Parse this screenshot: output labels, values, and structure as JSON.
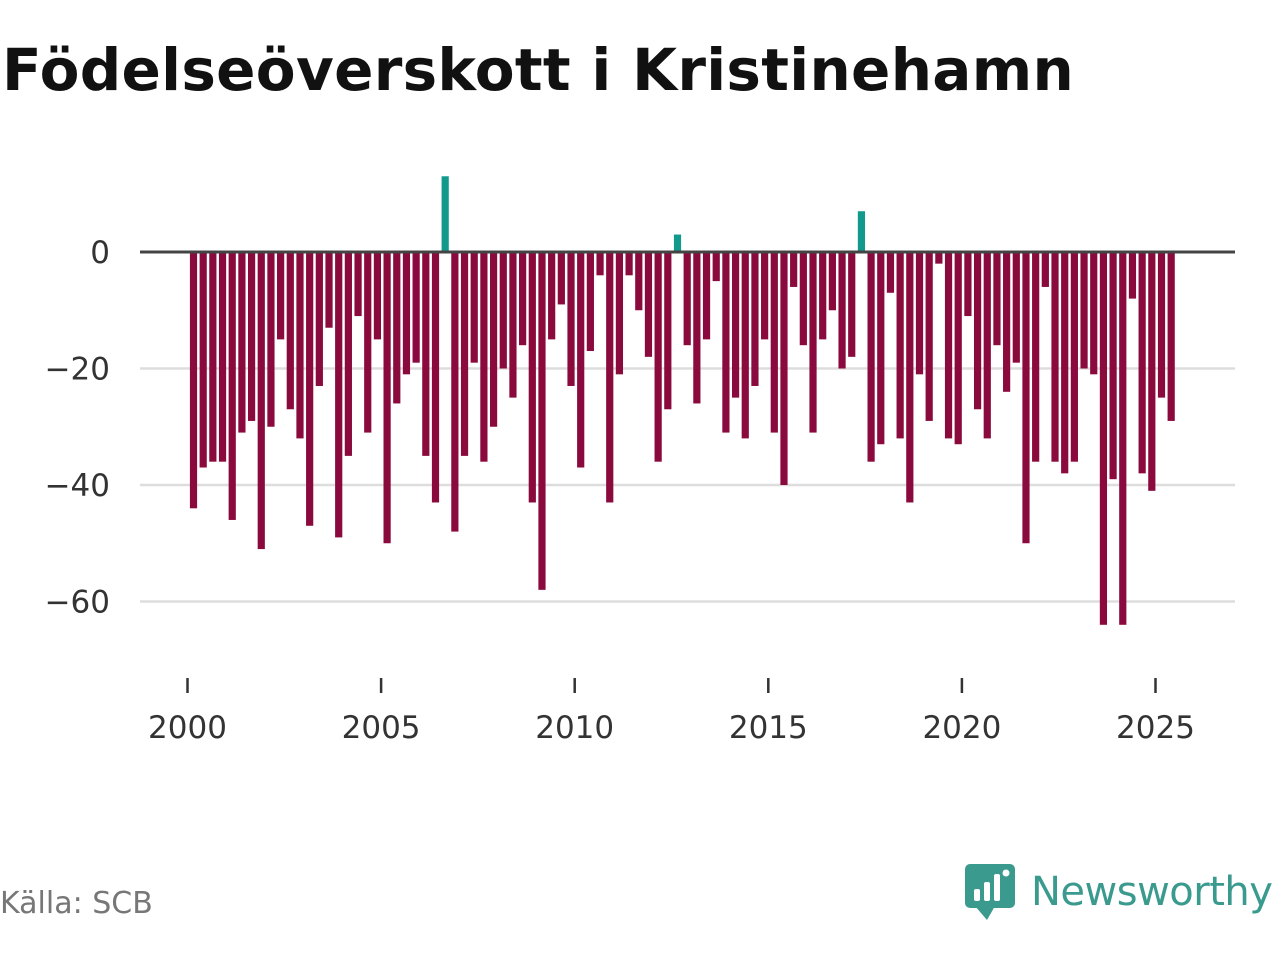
{
  "title": "Födelseöverskott i Kristinehamn",
  "source": "Källa: SCB",
  "brand": "Newsworthy",
  "colors": {
    "negative": "#8b0a3e",
    "positive": "#119a8c",
    "zero_line": "#444444",
    "grid": "#dddddd",
    "brand": "#3a9a8e"
  },
  "chart_data": {
    "type": "bar",
    "title": "Födelseöverskott i Kristinehamn",
    "xlabel": "",
    "ylabel": "",
    "frequency": "quarterly",
    "start": 2000,
    "xlim": [
      1999.5,
      2026.5
    ],
    "ylim": [
      -72,
      15
    ],
    "yticks": [
      0,
      -20,
      -40,
      -60
    ],
    "ytick_labels": [
      "0",
      "−20",
      "−40",
      "−60"
    ],
    "xticks": [
      2000,
      2005,
      2010,
      2015,
      2020,
      2025
    ],
    "xtick_labels": [
      "2000",
      "2005",
      "2010",
      "2015",
      "2020",
      "2025"
    ],
    "values": [
      -44,
      -37,
      -36,
      -36,
      -46,
      -31,
      -29,
      -51,
      -30,
      -15,
      -27,
      -32,
      -47,
      -23,
      -13,
      -49,
      -35,
      -11,
      -31,
      -15,
      -50,
      -26,
      -21,
      -19,
      -35,
      -43,
      13,
      -48,
      -35,
      -19,
      -36,
      -30,
      -20,
      -25,
      -16,
      -43,
      -58,
      -15,
      -9,
      -23,
      -37,
      -17,
      -4,
      -43,
      -21,
      -4,
      -10,
      -18,
      -36,
      -27,
      3,
      -16,
      -26,
      -15,
      -5,
      -31,
      -25,
      -32,
      -23,
      -15,
      -31,
      -40,
      -6,
      -16,
      -31,
      -15,
      -10,
      -20,
      -18,
      7,
      -36,
      -33,
      -7,
      -32,
      -43,
      -21,
      -29,
      -2,
      -32,
      -33,
      -11,
      -27,
      -32,
      -16,
      -24,
      -19,
      -50,
      -36,
      -6,
      -36,
      -38,
      -36,
      -20,
      -21,
      -64,
      -39,
      -64,
      -8,
      -38,
      -41,
      -25,
      -29
    ]
  }
}
